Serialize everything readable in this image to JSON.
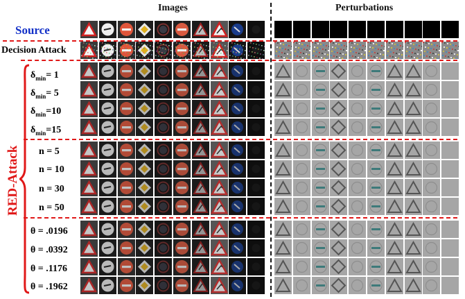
{
  "figure": {
    "headers": {
      "images": "Images",
      "perturbations": "Perturbations"
    },
    "source_label": "Source",
    "decision_label": "Decision Attack",
    "red_label": "RED-Attack",
    "delta_labels": [
      "δ",
      "min",
      "= 1",
      "δ",
      "min",
      "= 5",
      "δ",
      "min",
      "=10",
      "δ",
      "min",
      "=15"
    ],
    "n_labels": [
      "n = 5",
      "n = 10",
      "n = 30",
      "n = 50"
    ],
    "theta_labels": [
      "θ = .0196",
      "θ = .0392",
      "θ = .1176",
      "θ = .1962"
    ],
    "sign_types": [
      "triangle-red",
      "white-circle-arrow",
      "no-entry",
      "diamond-priority",
      "speed-circle-dark",
      "no-entry-dark",
      "triangle-warning-dark",
      "triangle-warning",
      "blue-arrow-circle",
      "dark-night"
    ],
    "colors": {
      "source": "#1230c8",
      "red_attack": "#e01818",
      "separator": "#e01818",
      "divider": "#111111"
    }
  }
}
